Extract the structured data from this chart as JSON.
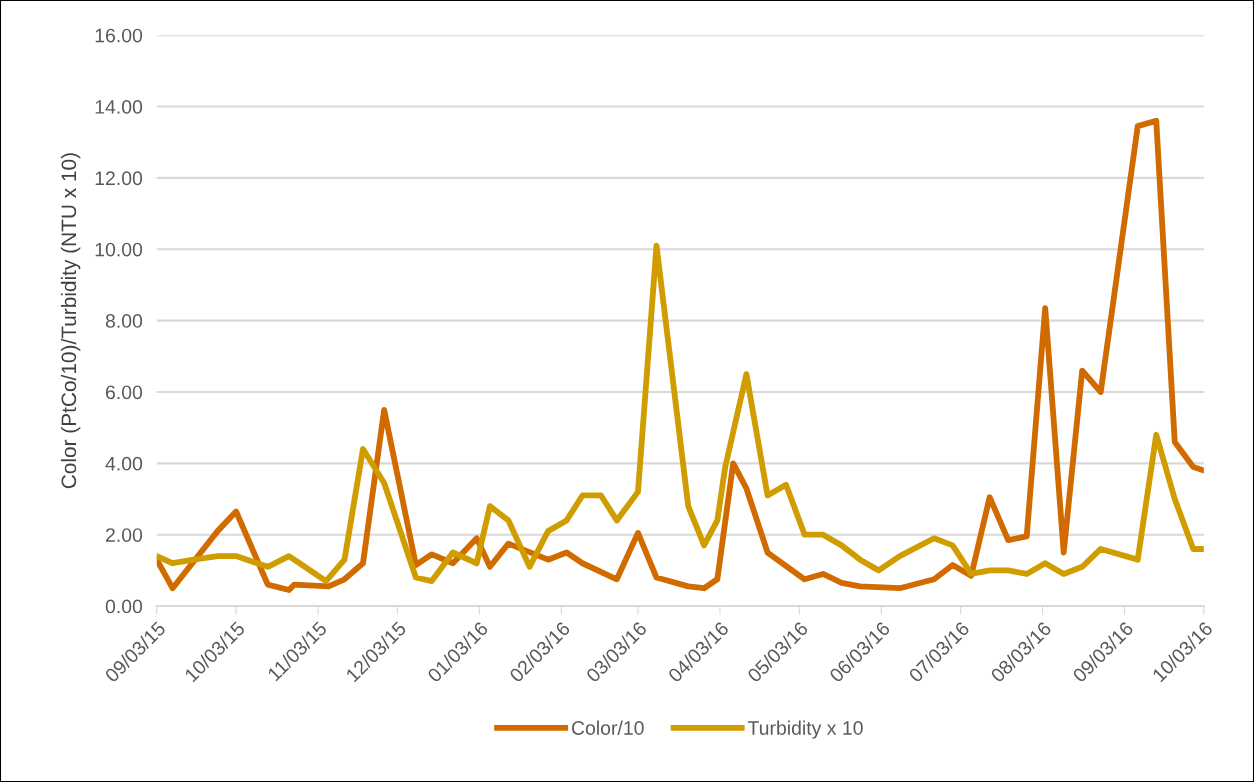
{
  "chart_data": {
    "type": "line",
    "ylabel": "Color (PtCo/10)/Turbidity (NTU x 10)",
    "series": [
      {
        "name": "Color/10",
        "color": "#d16b00",
        "x": [
          "2015-09-03",
          "2015-09-09",
          "2015-09-26",
          "2015-10-03",
          "2015-10-15",
          "2015-10-23",
          "2015-10-25",
          "2015-11-07",
          "2015-11-13",
          "2015-11-20",
          "2015-11-28",
          "2015-12-10",
          "2015-12-16",
          "2015-12-24",
          "2016-01-02",
          "2016-01-07",
          "2016-01-14",
          "2016-01-29",
          "2016-02-05",
          "2016-02-11",
          "2016-02-24",
          "2016-03-03",
          "2016-03-10",
          "2016-03-22",
          "2016-03-28",
          "2016-04-02",
          "2016-04-08",
          "2016-04-13",
          "2016-04-21",
          "2016-05-05",
          "2016-05-12",
          "2016-05-19",
          "2016-05-26",
          "2016-06-10",
          "2016-06-23",
          "2016-06-30",
          "2016-07-07",
          "2016-07-14",
          "2016-07-21",
          "2016-07-28",
          "2016-08-04",
          "2016-08-11",
          "2016-08-18",
          "2016-08-25",
          "2016-09-08",
          "2016-09-15",
          "2016-09-22",
          "2016-09-29",
          "2016-10-03"
        ],
        "values": [
          1.3,
          0.5,
          2.1,
          2.65,
          0.6,
          0.45,
          0.6,
          0.55,
          0.75,
          1.2,
          5.5,
          1.15,
          1.45,
          1.2,
          1.9,
          1.1,
          1.75,
          1.3,
          1.5,
          1.2,
          0.75,
          2.05,
          0.8,
          0.55,
          0.5,
          0.75,
          4.0,
          3.3,
          1.5,
          0.75,
          0.9,
          0.65,
          0.55,
          0.5,
          0.75,
          1.15,
          0.85,
          3.05,
          1.85,
          1.95,
          8.35,
          1.5,
          6.6,
          6.0,
          13.45,
          13.6,
          4.6,
          3.9,
          3.8
        ]
      },
      {
        "name": "Turbidity x 10",
        "color": "#cf9d00",
        "x": [
          "2015-09-03",
          "2015-09-09",
          "2015-09-17",
          "2015-09-26",
          "2015-10-03",
          "2015-10-15",
          "2015-10-23",
          "2015-10-28",
          "2015-11-06",
          "2015-11-13",
          "2015-11-20",
          "2015-11-28",
          "2015-12-10",
          "2015-12-16",
          "2015-12-24",
          "2016-01-02",
          "2016-01-07",
          "2016-01-14",
          "2016-01-22",
          "2016-01-29",
          "2016-02-05",
          "2016-02-11",
          "2016-02-18",
          "2016-02-24",
          "2016-03-03",
          "2016-03-10",
          "2016-03-22",
          "2016-03-28",
          "2016-04-02",
          "2016-04-05",
          "2016-04-13",
          "2016-04-21",
          "2016-04-28",
          "2016-05-05",
          "2016-05-12",
          "2016-05-19",
          "2016-05-26",
          "2016-06-02",
          "2016-06-10",
          "2016-06-23",
          "2016-06-30",
          "2016-07-07",
          "2016-07-14",
          "2016-07-21",
          "2016-07-28",
          "2016-08-04",
          "2016-08-11",
          "2016-08-18",
          "2016-08-25",
          "2016-09-08",
          "2016-09-15",
          "2016-09-22",
          "2016-09-29",
          "2016-10-03"
        ],
        "values": [
          1.4,
          1.2,
          1.3,
          1.4,
          1.4,
          1.1,
          1.4,
          1.15,
          0.7,
          1.3,
          4.4,
          3.45,
          0.8,
          0.7,
          1.5,
          1.2,
          2.8,
          2.4,
          1.1,
          2.1,
          2.4,
          3.1,
          3.1,
          2.4,
          3.2,
          10.1,
          2.8,
          1.7,
          2.4,
          3.9,
          6.5,
          3.1,
          3.4,
          2.0,
          2.0,
          1.7,
          1.3,
          1.0,
          1.4,
          1.9,
          1.7,
          0.9,
          1.0,
          1.0,
          0.9,
          1.2,
          0.9,
          1.1,
          1.6,
          1.3,
          4.8,
          3.0,
          1.6,
          1.6
        ]
      }
    ],
    "xlim": [
      "2015-09-03",
      "2016-10-03"
    ],
    "xticks": [
      {
        "value": "2015-09-03",
        "label": "09/03/15"
      },
      {
        "value": "2015-10-03",
        "label": "10/03/15"
      },
      {
        "value": "2015-11-03",
        "label": "11/03/15"
      },
      {
        "value": "2015-12-03",
        "label": "12/03/15"
      },
      {
        "value": "2016-01-03",
        "label": "01/03/16"
      },
      {
        "value": "2016-02-03",
        "label": "02/03/16"
      },
      {
        "value": "2016-03-03",
        "label": "03/03/16"
      },
      {
        "value": "2016-04-03",
        "label": "04/03/16"
      },
      {
        "value": "2016-05-03",
        "label": "05/03/16"
      },
      {
        "value": "2016-06-03",
        "label": "06/03/16"
      },
      {
        "value": "2016-07-03",
        "label": "07/03/16"
      },
      {
        "value": "2016-08-03",
        "label": "08/03/16"
      },
      {
        "value": "2016-09-03",
        "label": "09/03/16"
      },
      {
        "value": "2016-10-03",
        "label": "10/03/16"
      }
    ],
    "ylim": [
      0,
      16
    ],
    "yticks": [
      {
        "value": 0,
        "label": "0.00"
      },
      {
        "value": 2,
        "label": "2.00"
      },
      {
        "value": 4,
        "label": "4.00"
      },
      {
        "value": 6,
        "label": "6.00"
      },
      {
        "value": 8,
        "label": "8.00"
      },
      {
        "value": 10,
        "label": "10.00"
      },
      {
        "value": 12,
        "label": "12.00"
      },
      {
        "value": 14,
        "label": "14.00"
      },
      {
        "value": 16,
        "label": "16.00"
      }
    ],
    "grid": "y",
    "legend": "bottom",
    "marker": "none",
    "line_style": "solid"
  }
}
